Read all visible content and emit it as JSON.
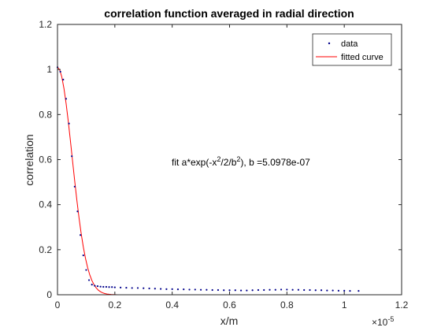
{
  "chart_data": {
    "type": "scatter",
    "title": "correlation function averaged in radial direction",
    "xlabel": "x/m",
    "ylabel": "correlation",
    "x_exponent_label": "×10",
    "x_exponent": "-5",
    "x_scale": 1e-05,
    "xlim": [
      0,
      1.2
    ],
    "ylim": [
      0,
      1.2
    ],
    "xticks": [
      "0",
      "0.2",
      "0.4",
      "0.6",
      "0.8",
      "1",
      "1.2"
    ],
    "yticks": [
      "0",
      "0.2",
      "0.4",
      "0.6",
      "0.8",
      "1",
      "1.2"
    ],
    "grid": false,
    "legend_position": "top-right",
    "annotation": {
      "prefix": "fit a*exp(-x",
      "sup1": "2",
      "middle": "/2/b",
      "sup2": "2",
      "suffix": "), b =5.0978e-07"
    },
    "series": [
      {
        "name": "data",
        "style": "points",
        "color": "#00008b",
        "x": [
          0.0,
          0.01,
          0.02,
          0.03,
          0.04,
          0.05,
          0.06,
          0.07,
          0.08,
          0.09,
          0.1,
          0.11,
          0.12,
          0.13,
          0.14,
          0.15,
          0.16,
          0.17,
          0.18,
          0.19,
          0.2,
          0.22,
          0.24,
          0.26,
          0.28,
          0.3,
          0.32,
          0.34,
          0.36,
          0.38,
          0.4,
          0.42,
          0.44,
          0.46,
          0.48,
          0.5,
          0.52,
          0.54,
          0.56,
          0.58,
          0.6,
          0.62,
          0.64,
          0.66,
          0.68,
          0.7,
          0.72,
          0.74,
          0.76,
          0.78,
          0.8,
          0.82,
          0.84,
          0.86,
          0.88,
          0.9,
          0.92,
          0.94,
          0.96,
          0.98,
          1.0,
          1.02,
          1.05
        ],
        "y": [
          1.01,
          0.99,
          0.955,
          0.87,
          0.76,
          0.615,
          0.48,
          0.37,
          0.265,
          0.175,
          0.11,
          0.065,
          0.045,
          0.04,
          0.038,
          0.036,
          0.035,
          0.035,
          0.034,
          0.034,
          0.033,
          0.032,
          0.031,
          0.03,
          0.03,
          0.029,
          0.028,
          0.027,
          0.026,
          0.025,
          0.025,
          0.024,
          0.024,
          0.023,
          0.023,
          0.022,
          0.022,
          0.021,
          0.021,
          0.02,
          0.02,
          0.02,
          0.019,
          0.019,
          0.02,
          0.021,
          0.021,
          0.022,
          0.022,
          0.023,
          0.023,
          0.022,
          0.022,
          0.021,
          0.021,
          0.02,
          0.02,
          0.019,
          0.019,
          0.018,
          0.018,
          0.017,
          0.017
        ]
      },
      {
        "name": "fitted curve",
        "style": "line",
        "color": "#ff0000",
        "function": "a*exp(-x^2/2/b^2)",
        "a": 1.01,
        "b": 5.0978e-07
      }
    ]
  }
}
